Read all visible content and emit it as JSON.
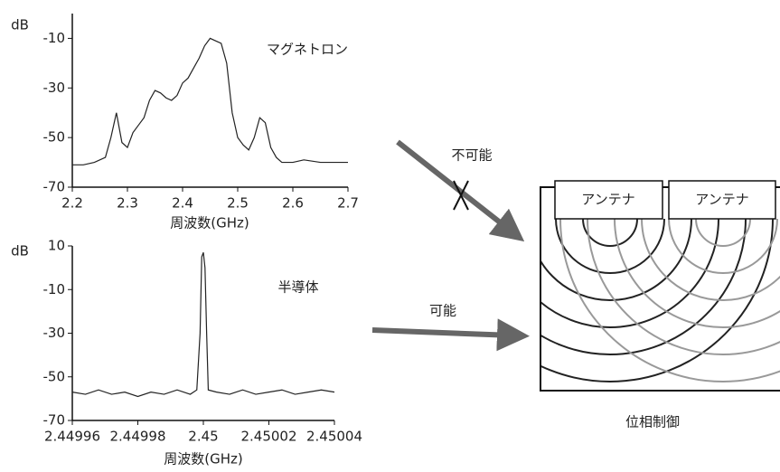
{
  "chart_data": [
    {
      "type": "line",
      "y_label": "dB",
      "x_label": "周波数(GHz)",
      "annotation": "マグネトロン",
      "color": "#222222",
      "x": [
        2.2,
        2.22,
        2.24,
        2.26,
        2.27,
        2.28,
        2.29,
        2.3,
        2.31,
        2.32,
        2.33,
        2.34,
        2.35,
        2.36,
        2.37,
        2.38,
        2.39,
        2.4,
        2.41,
        2.42,
        2.43,
        2.44,
        2.45,
        2.46,
        2.47,
        2.48,
        2.49,
        2.5,
        2.51,
        2.52,
        2.53,
        2.54,
        2.55,
        2.56,
        2.57,
        2.58,
        2.6,
        2.62,
        2.65,
        2.7
      ],
      "values": [
        -61,
        -61,
        -60,
        -58,
        -50,
        -40,
        -52,
        -54,
        -48,
        -45,
        -42,
        -35,
        -31,
        -32,
        -34,
        -35,
        -33,
        -28,
        -26,
        -22,
        -18,
        -13,
        -10,
        -11,
        -12,
        -20,
        -40,
        -50,
        -53,
        -55,
        -50,
        -42,
        -44,
        -54,
        -58,
        -60,
        -60,
        -59,
        -60,
        -60
      ],
      "xlim": [
        2.2,
        2.7
      ],
      "xticks": [
        2.2,
        2.3,
        2.4,
        2.5,
        2.6,
        2.7
      ],
      "ylim": [
        -70,
        0
      ],
      "yticks": [
        -10,
        -30,
        -50,
        -70
      ]
    },
    {
      "type": "line",
      "y_label": "dB",
      "x_label": "周波数(GHz)",
      "annotation": "半導体",
      "color": "#222222",
      "x": [
        2.44996,
        2.449964,
        2.449968,
        2.449972,
        2.449976,
        2.44998,
        2.449984,
        2.449988,
        2.449992,
        2.449996,
        2.449998,
        2.449999,
        2.4499995,
        2.45,
        2.4500005,
        2.450001,
        2.4500015,
        2.450004,
        2.450008,
        2.450012,
        2.450016,
        2.45002,
        2.450024,
        2.450028,
        2.450032,
        2.450036,
        2.45004
      ],
      "values": [
        -57,
        -58,
        -56,
        -58,
        -57,
        -59,
        -57,
        -58,
        -56,
        -58,
        -56,
        -30,
        5,
        7,
        0,
        -30,
        -56,
        -57,
        -58,
        -56,
        -58,
        -57,
        -56,
        -58,
        -57,
        -56,
        -57
      ],
      "xlim": [
        2.44996,
        2.45004
      ],
      "xticks": [
        2.44996,
        2.44998,
        2.45,
        2.45002,
        2.45004
      ],
      "ylim": [
        -70,
        10
      ],
      "yticks": [
        10,
        -10,
        -30,
        -50,
        -70
      ]
    }
  ],
  "diagram": {
    "arrows": [
      {
        "label": "不可能"
      },
      {
        "label": "可能"
      }
    ],
    "antennas": [
      "アンテナ",
      "アンテナ"
    ],
    "caption": "位相制御"
  }
}
